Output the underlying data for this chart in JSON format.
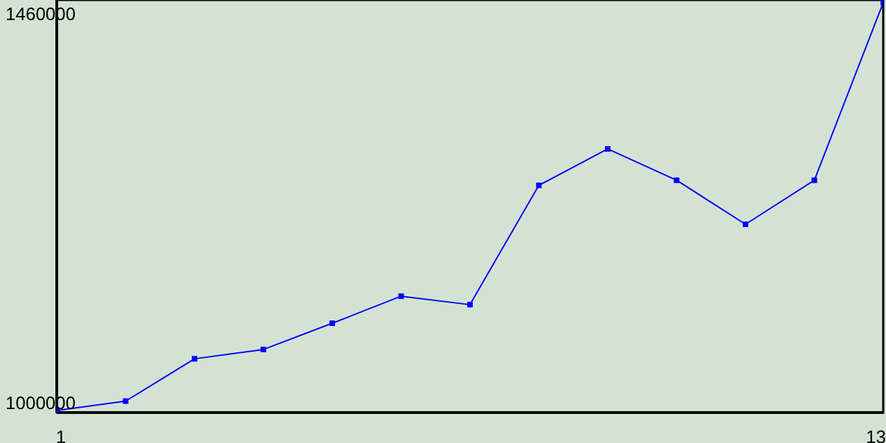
{
  "chart_data": {
    "type": "line",
    "x": [
      1,
      2,
      3,
      4,
      5,
      6,
      7,
      8,
      9,
      10,
      11,
      12,
      13
    ],
    "series": [
      {
        "color": "#0000ff",
        "values": [
          991000,
          1002000,
          1052000,
          1063000,
          1094000,
          1126000,
          1116000,
          1257000,
          1300000,
          1263000,
          1211000,
          1263000,
          1473000
        ]
      }
    ],
    "xlim": [
      1,
      13
    ],
    "xticks": [
      1,
      13
    ],
    "ylim": [
      988500,
      1476000
    ],
    "yticks": [
      1000000,
      1460000
    ],
    "marker": "square",
    "line_style": "solid"
  }
}
